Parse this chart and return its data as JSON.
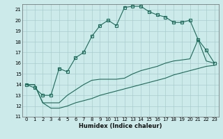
{
  "xlabel": "Humidex (Indice chaleur)",
  "bg_color": "#cceaea",
  "grid_color": "#aacccc",
  "line_color": "#1a6b5a",
  "xlim": [
    -0.5,
    23.5
  ],
  "ylim": [
    11,
    21.5
  ],
  "yticks": [
    11,
    12,
    13,
    14,
    15,
    16,
    17,
    18,
    19,
    20,
    21
  ],
  "xticks": [
    0,
    1,
    2,
    3,
    4,
    5,
    6,
    7,
    8,
    9,
    10,
    11,
    12,
    13,
    14,
    15,
    16,
    17,
    18,
    19,
    20,
    21,
    22,
    23
  ],
  "curve1_x": [
    0,
    1,
    2,
    3,
    4,
    5,
    6,
    7,
    8,
    9,
    10,
    11,
    12,
    13,
    14,
    15,
    16,
    17,
    18,
    19,
    20,
    21,
    22,
    23
  ],
  "curve1_y": [
    14.0,
    13.7,
    13.0,
    13.0,
    15.5,
    15.2,
    16.5,
    17.0,
    18.5,
    19.5,
    20.0,
    19.5,
    21.2,
    21.3,
    21.3,
    20.8,
    20.5,
    20.3,
    19.8,
    19.8,
    20.0,
    18.2,
    17.2,
    16.0
  ],
  "curve2_x": [
    0,
    1,
    2,
    3,
    4,
    5,
    6,
    7,
    8,
    9,
    10,
    11,
    12,
    13,
    14,
    15,
    16,
    17,
    18,
    19,
    20,
    21,
    22,
    23
  ],
  "curve2_y": [
    14.0,
    14.0,
    12.3,
    12.3,
    12.3,
    13.0,
    13.5,
    14.0,
    14.4,
    14.5,
    14.5,
    14.5,
    14.6,
    15.0,
    15.3,
    15.5,
    15.7,
    16.0,
    16.2,
    16.3,
    16.4,
    18.2,
    16.2,
    16.0
  ],
  "curve3_x": [
    0,
    1,
    2,
    3,
    4,
    5,
    6,
    7,
    8,
    9,
    10,
    11,
    12,
    13,
    14,
    15,
    16,
    17,
    18,
    19,
    20,
    21,
    22,
    23
  ],
  "curve3_y": [
    14.0,
    14.0,
    12.3,
    11.8,
    11.8,
    12.0,
    12.3,
    12.5,
    12.7,
    13.0,
    13.2,
    13.4,
    13.6,
    13.8,
    14.0,
    14.2,
    14.4,
    14.6,
    14.9,
    15.1,
    15.3,
    15.5,
    15.7,
    15.8
  ]
}
